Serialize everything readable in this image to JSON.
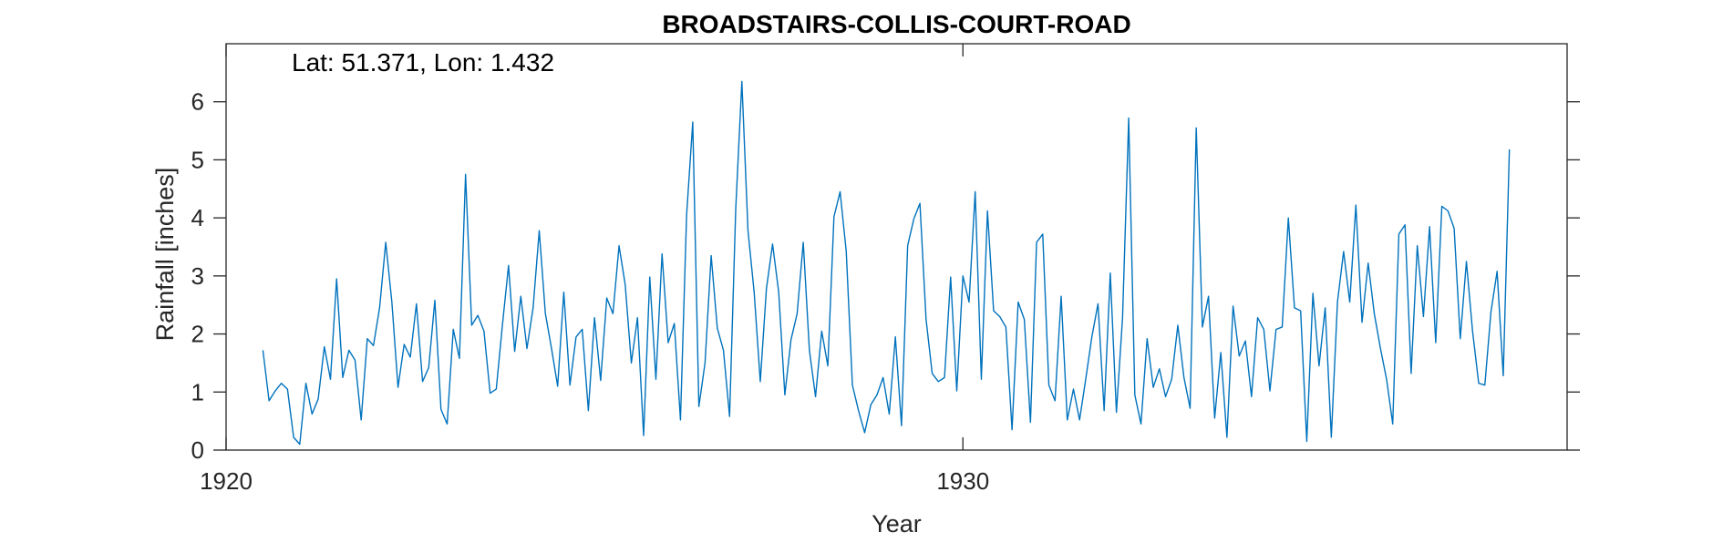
{
  "chart_data": {
    "type": "line",
    "title": "BROADSTAIRS-COLLIS-COURT-ROAD",
    "annotation": "Lat: 51.371, Lon: 1.432",
    "xlabel": "Year",
    "ylabel": "Rainfall [inches]",
    "xlim": [
      1920,
      1938.2
    ],
    "ylim": [
      0,
      7
    ],
    "x_ticks": [
      1920,
      1930
    ],
    "x_tick_labels": [
      "1920",
      "1930"
    ],
    "y_ticks": [
      0,
      1,
      2,
      3,
      4,
      5,
      6
    ],
    "y_tick_labels": [
      "0",
      "1",
      "2",
      "3",
      "4",
      "5",
      "6"
    ],
    "x_start": 1920.5,
    "x_step": 0.0833333,
    "series": [
      {
        "color": "#0072BD",
        "values": [
          1.72,
          0.85,
          1.02,
          1.15,
          1.05,
          0.22,
          0.1,
          1.15,
          0.62,
          0.88,
          1.78,
          1.22,
          2.95,
          1.25,
          1.72,
          1.55,
          0.52,
          1.92,
          1.8,
          2.45,
          3.58,
          2.55,
          1.08,
          1.82,
          1.6,
          2.52,
          1.18,
          1.42,
          2.58,
          0.7,
          0.45,
          2.08,
          1.58,
          4.75,
          2.15,
          2.32,
          2.05,
          0.98,
          1.05,
          2.15,
          3.18,
          1.7,
          2.65,
          1.75,
          2.45,
          3.78,
          2.35,
          1.75,
          1.1,
          2.72,
          1.12,
          1.95,
          2.08,
          0.68,
          2.28,
          1.2,
          2.62,
          2.35,
          3.52,
          2.85,
          1.5,
          2.28,
          0.25,
          2.98,
          1.22,
          3.38,
          1.85,
          2.18,
          0.52,
          4.05,
          5.65,
          0.75,
          1.5,
          3.35,
          2.1,
          1.72,
          0.58,
          4.15,
          6.35,
          3.78,
          2.72,
          1.18,
          2.78,
          3.55,
          2.72,
          0.95,
          1.9,
          2.35,
          3.58,
          1.72,
          0.92,
          2.05,
          1.45,
          4.02,
          4.45,
          3.42,
          1.12,
          0.68,
          0.3,
          0.78,
          0.95,
          1.25,
          0.62,
          1.95,
          0.42,
          3.52,
          3.98,
          4.25,
          2.25,
          1.32,
          1.18,
          1.25,
          2.98,
          1.02,
          3.0,
          2.55,
          4.45,
          1.22,
          4.12,
          2.4,
          2.3,
          2.12,
          0.35,
          2.55,
          2.25,
          0.48,
          3.58,
          3.72,
          1.12,
          0.85,
          2.65,
          0.52,
          1.05,
          0.52,
          1.22,
          1.95,
          2.52,
          0.68,
          3.05,
          0.65,
          2.28,
          5.72,
          0.95,
          0.45,
          1.92,
          1.08,
          1.4,
          0.92,
          1.22,
          2.15,
          1.25,
          0.72,
          5.55,
          2.12,
          2.65,
          0.55,
          1.68,
          0.22,
          2.48,
          1.62,
          1.88,
          0.92,
          2.28,
          2.08,
          1.02,
          2.08,
          2.12,
          4.0,
          2.45,
          2.4,
          0.15,
          2.7,
          1.45,
          2.45,
          0.22,
          2.55,
          3.42,
          2.55,
          4.22,
          2.2,
          3.22,
          2.35,
          1.75,
          1.22,
          0.45,
          3.72,
          3.88,
          1.32,
          3.52,
          2.3,
          3.85,
          1.85,
          4.2,
          4.12,
          3.82,
          1.92,
          3.25,
          2.05,
          1.15,
          1.12,
          2.38,
          3.08,
          1.28,
          5.18
        ]
      }
    ]
  }
}
